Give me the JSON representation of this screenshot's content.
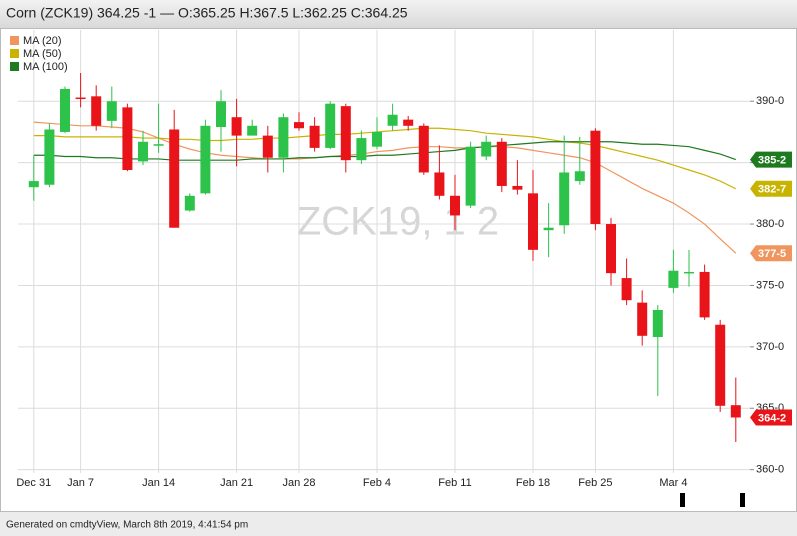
{
  "chart_data": {
    "type": "candlestick",
    "title": "Corn (ZCK19) 364.25 -1 — O:365.25 H:367.5 L:362.25 C:364.25",
    "watermark": "ZCK19, 1 2",
    "footer": "Generated on cmdtyView, March 8th 2019, 4:41:54 pm",
    "categories": [
      "Dec 31",
      null,
      null,
      "Jan 7",
      null,
      null,
      null,
      null,
      "Jan 14",
      null,
      null,
      null,
      null,
      "Jan 21",
      null,
      null,
      null,
      "Jan 28",
      null,
      null,
      null,
      null,
      "Feb 4",
      null,
      null,
      null,
      null,
      "Feb 11",
      null,
      null,
      null,
      null,
      "Feb 18",
      null,
      null,
      null,
      "Feb 25",
      null,
      null,
      null,
      null,
      "Mar 4",
      null,
      null,
      null,
      null
    ],
    "open": [
      383.0,
      383.2,
      387.5,
      390.3,
      390.4,
      388.4,
      389.5,
      385.1,
      386.5,
      387.7,
      381.1,
      382.5,
      387.9,
      388.7,
      387.2,
      387.2,
      385.4,
      388.3,
      388.0,
      386.2,
      389.6,
      385.2,
      386.3,
      388.0,
      388.5,
      388.0,
      384.2,
      382.3,
      381.5,
      385.5,
      386.7,
      383.1,
      382.5,
      379.5,
      379.9,
      383.5,
      387.6,
      380.0,
      375.6,
      373.6,
      370.8,
      374.8,
      376.0,
      376.1,
      371.8,
      365.25
    ],
    "high": [
      385.6,
      388.2,
      391.2,
      392.3,
      391.3,
      391.2,
      389.8,
      387.6,
      389.8,
      389.3,
      382.5,
      388.5,
      390.9,
      390.2,
      388.5,
      388.0,
      389.0,
      389.1,
      388.7,
      390.0,
      389.8,
      387.6,
      388.7,
      389.8,
      388.8,
      388.2,
      386.4,
      384.0,
      386.7,
      387.2,
      387.0,
      385.2,
      384.4,
      381.7,
      387.2,
      387.1,
      387.8,
      380.5,
      377.2,
      374.6,
      373.4,
      377.9,
      377.9,
      376.7,
      372.2,
      367.5
    ],
    "low": [
      381.9,
      383.0,
      387.4,
      389.5,
      387.6,
      387.8,
      384.3,
      384.8,
      385.8,
      379.7,
      381.0,
      382.4,
      385.9,
      384.7,
      387.4,
      384.2,
      384.2,
      387.6,
      385.9,
      386.1,
      384.2,
      384.9,
      386.1,
      387.6,
      387.6,
      384.0,
      382.0,
      379.5,
      381.3,
      385.2,
      382.6,
      382.4,
      377.0,
      377.3,
      379.2,
      383.2,
      379.5,
      375.0,
      373.4,
      370.1,
      366.0,
      374.4,
      374.9,
      372.2,
      364.7,
      362.25
    ],
    "close": [
      383.5,
      387.7,
      391.0,
      390.2,
      388.0,
      390.0,
      384.4,
      386.7,
      386.5,
      379.7,
      382.3,
      388.0,
      390.0,
      387.2,
      388.0,
      385.4,
      388.7,
      387.8,
      386.2,
      389.8,
      385.2,
      387.0,
      387.5,
      388.9,
      388.0,
      384.2,
      382.3,
      380.7,
      386.3,
      386.7,
      383.1,
      382.8,
      377.9,
      379.7,
      384.2,
      384.3,
      380.0,
      376.0,
      373.8,
      370.9,
      373.0,
      376.2,
      376.1,
      372.4,
      365.2,
      364.25
    ],
    "last_label": "364-2",
    "up_color": "#2dc24a",
    "down_color": "#e8141a",
    "series": [
      {
        "name": "MA (20)",
        "color": "#f0955e",
        "last_label": "377-5",
        "values": [
          388.3,
          388.2,
          388.1,
          388.0,
          388.0,
          387.9,
          387.8,
          387.5,
          387.0,
          386.5,
          386.1,
          385.8,
          385.6,
          385.5,
          385.4,
          385.3,
          385.3,
          385.3,
          385.4,
          385.5,
          385.6,
          385.7,
          385.9,
          386.0,
          386.2,
          386.3,
          386.3,
          386.2,
          386.2,
          386.3,
          386.3,
          386.2,
          386.0,
          385.8,
          385.6,
          385.4,
          385.0,
          384.3,
          383.6,
          382.9,
          382.3,
          381.7,
          380.9,
          380.0,
          378.8,
          377.625
        ]
      },
      {
        "name": "MA (50)",
        "color": "#c8b400",
        "last_label": "382-7",
        "values": [
          387.2,
          387.2,
          387.1,
          387.1,
          387.1,
          387.1,
          387.1,
          387.0,
          387.0,
          386.9,
          386.9,
          386.8,
          386.8,
          386.9,
          386.9,
          387.0,
          387.0,
          387.1,
          387.2,
          387.3,
          387.3,
          387.4,
          387.5,
          387.6,
          387.7,
          387.8,
          387.8,
          387.7,
          387.6,
          387.4,
          387.3,
          387.2,
          387.1,
          386.9,
          386.7,
          386.6,
          386.4,
          386.1,
          385.8,
          385.5,
          385.2,
          384.8,
          384.4,
          384.0,
          383.5,
          382.875
        ]
      },
      {
        "name": "MA (100)",
        "color": "#1e7a1e",
        "last_label": "385-2",
        "values": [
          385.6,
          385.6,
          385.5,
          385.5,
          385.4,
          385.4,
          385.3,
          385.3,
          385.3,
          385.2,
          385.2,
          385.2,
          385.2,
          385.2,
          385.3,
          385.3,
          385.3,
          385.4,
          385.4,
          385.5,
          385.5,
          385.5,
          385.6,
          385.6,
          385.7,
          385.8,
          385.9,
          386.0,
          386.2,
          386.3,
          386.4,
          386.5,
          386.6,
          386.7,
          386.7,
          386.7,
          386.7,
          386.7,
          386.6,
          386.5,
          386.5,
          386.4,
          386.3,
          386.0,
          385.7,
          385.25
        ]
      }
    ],
    "ylim": [
      358.1,
      395.8
    ],
    "yticks": [
      {
        "value": 360,
        "label": "360-0"
      },
      {
        "value": 365,
        "label": "365-0"
      },
      {
        "value": 370,
        "label": "370-0"
      },
      {
        "value": 375,
        "label": "375-0"
      },
      {
        "value": 380,
        "label": "380-0"
      },
      {
        "value": 385,
        "label": "385-0"
      },
      {
        "value": 390,
        "label": "390-0"
      }
    ],
    "grid": true
  }
}
